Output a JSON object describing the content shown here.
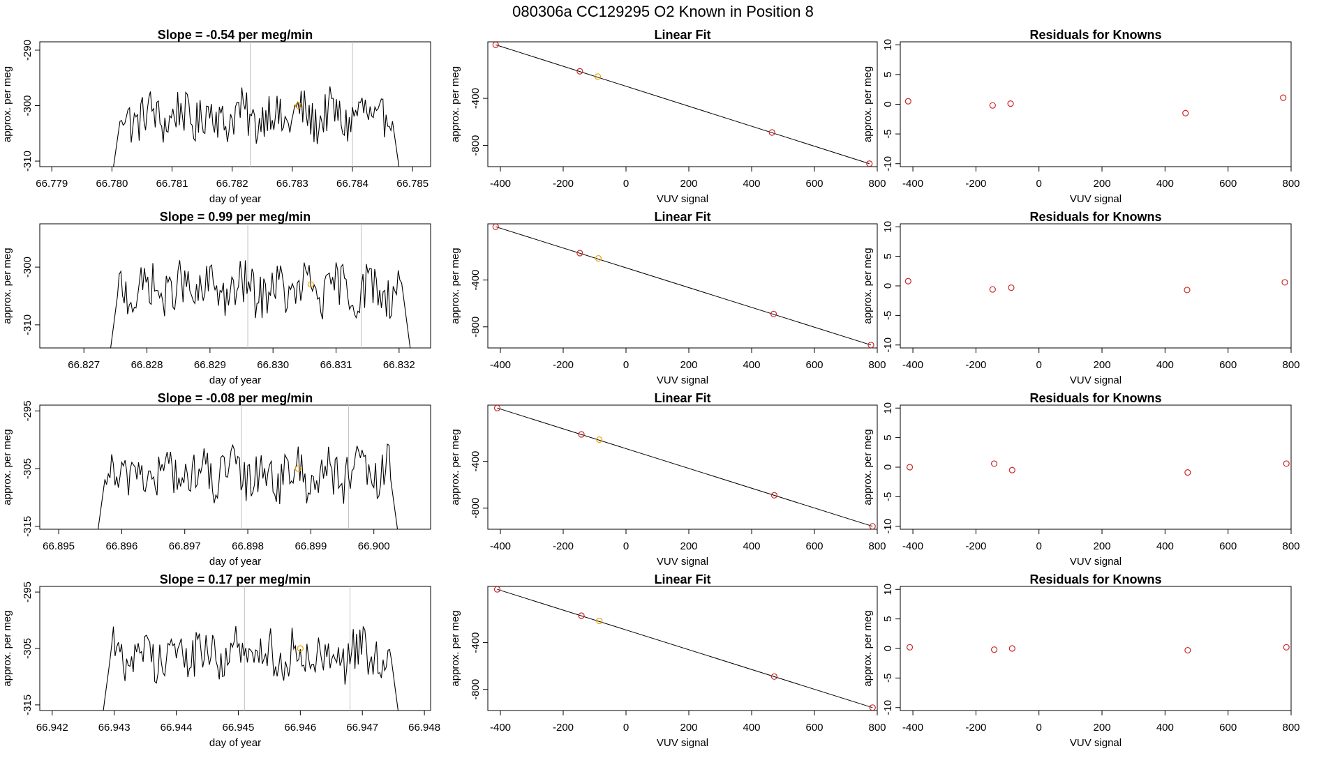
{
  "header": {
    "title": "080306a      CC129295    O2 Known in Position  8"
  },
  "colors": {
    "trace": "#000000",
    "marker_red": "#cd2626",
    "marker_orange": "#e8a000",
    "guide_line": "#bfbfbf"
  },
  "chart_data": [
    {
      "type": "line",
      "title": "Slope =  -0.54  per meg/min",
      "xlabel": "day of year",
      "ylabel": "approx. per meg",
      "xlim": [
        66.7788,
        66.7853
      ],
      "ylim": [
        -311,
        -288.5
      ],
      "xticks": [
        "66.779",
        "66.780",
        "66.781",
        "66.782",
        "66.783",
        "66.784",
        "66.785"
      ],
      "yticks": [
        "-290",
        "-300",
        "-310"
      ],
      "trace_start": 66.78,
      "trace_end": 66.7848,
      "baseline": -302,
      "vlines": [
        66.7823,
        66.784
      ],
      "highlight_point": {
        "x": 66.7831,
        "y": -300
      }
    },
    {
      "type": "scatter",
      "title": "Linear Fit",
      "xlabel": "VUV signal",
      "ylabel": "approx. per meg",
      "xlim": [
        -440,
        800
      ],
      "ylim": [
        -980,
        80
      ],
      "xticks": [
        "-400",
        "-200",
        "0",
        "200",
        "400",
        "600",
        "800"
      ],
      "yticks": [
        "-400",
        "-800"
      ],
      "points": [
        {
          "x": -415,
          "y": 55,
          "color": "red"
        },
        {
          "x": -147,
          "y": -170,
          "color": "red"
        },
        {
          "x": -90,
          "y": -215,
          "color": "orange"
        },
        {
          "x": 465,
          "y": -690,
          "color": "red"
        },
        {
          "x": 775,
          "y": -955,
          "color": "red"
        }
      ],
      "fit_line": [
        [
          -415,
          55
        ],
        [
          775,
          -955
        ]
      ]
    },
    {
      "type": "scatter",
      "title": "Residuals for Knowns",
      "xlabel": "VUV signal",
      "ylabel": "approx. per meg",
      "xlim": [
        -440,
        800
      ],
      "ylim": [
        -10.5,
        10.5
      ],
      "xticks": [
        "-400",
        "-200",
        "0",
        "200",
        "400",
        "600",
        "800"
      ],
      "yticks": [
        "10",
        "5",
        "0",
        "-5",
        "-10"
      ],
      "points": [
        {
          "x": -415,
          "y": 0.5,
          "color": "red"
        },
        {
          "x": -147,
          "y": -0.2,
          "color": "red"
        },
        {
          "x": -90,
          "y": 0.1,
          "color": "red"
        },
        {
          "x": 465,
          "y": -1.5,
          "color": "red"
        },
        {
          "x": 775,
          "y": 1.1,
          "color": "red"
        }
      ]
    },
    {
      "type": "line",
      "title": "Slope =  0.99  per meg/min",
      "xlabel": "day of year",
      "ylabel": "approx. per meg",
      "xlim": [
        66.8263,
        66.8325
      ],
      "ylim": [
        -314,
        -292.5
      ],
      "xticks": [
        "66.827",
        "66.828",
        "66.829",
        "66.830",
        "66.831",
        "66.832"
      ],
      "yticks": [
        "-300",
        "-310"
      ],
      "trace_start": 66.8274,
      "trace_end": 66.8322,
      "baseline": -304,
      "vlines": [
        66.8296,
        66.8314
      ],
      "highlight_point": {
        "x": 66.8306,
        "y": -303
      }
    },
    {
      "type": "scatter",
      "title": "Linear Fit",
      "xlabel": "VUV signal",
      "ylabel": "approx. per meg",
      "xlim": [
        -440,
        800
      ],
      "ylim": [
        -980,
        80
      ],
      "xticks": [
        "-400",
        "-200",
        "0",
        "200",
        "400",
        "600",
        "800"
      ],
      "yticks": [
        "-400",
        "-800"
      ],
      "points": [
        {
          "x": -415,
          "y": 55,
          "color": "red"
        },
        {
          "x": -147,
          "y": -170,
          "color": "red"
        },
        {
          "x": -88,
          "y": -215,
          "color": "orange"
        },
        {
          "x": 470,
          "y": -690,
          "color": "red"
        },
        {
          "x": 780,
          "y": -955,
          "color": "red"
        }
      ],
      "fit_line": [
        [
          -415,
          55
        ],
        [
          780,
          -955
        ]
      ]
    },
    {
      "type": "scatter",
      "title": "Residuals for Knowns",
      "xlabel": "VUV signal",
      "ylabel": "approx. per meg",
      "xlim": [
        -440,
        800
      ],
      "ylim": [
        -10.5,
        10.5
      ],
      "xticks": [
        "-400",
        "-200",
        "0",
        "200",
        "400",
        "600",
        "800"
      ],
      "yticks": [
        "10",
        "5",
        "0",
        "-5",
        "-10"
      ],
      "points": [
        {
          "x": -415,
          "y": 0.8,
          "color": "red"
        },
        {
          "x": -147,
          "y": -0.6,
          "color": "red"
        },
        {
          "x": -88,
          "y": -0.3,
          "color": "red"
        },
        {
          "x": 470,
          "y": -0.7,
          "color": "red"
        },
        {
          "x": 780,
          "y": 0.6,
          "color": "red"
        }
      ]
    },
    {
      "type": "line",
      "title": "Slope =  -0.08  per meg/min",
      "xlabel": "day of year",
      "ylabel": "approx. per meg",
      "xlim": [
        66.8947,
        66.9009
      ],
      "ylim": [
        -315.5,
        -294
      ],
      "xticks": [
        "66.895",
        "66.896",
        "66.897",
        "66.898",
        "66.899",
        "66.900"
      ],
      "yticks": [
        "-295",
        "-305",
        "-315"
      ],
      "trace_start": 66.8956,
      "trace_end": 66.9004,
      "baseline": -306,
      "vlines": [
        66.8979,
        66.8996
      ],
      "highlight_point": {
        "x": 66.8988,
        "y": -305
      }
    },
    {
      "type": "scatter",
      "title": "Linear Fit",
      "xlabel": "VUV signal",
      "ylabel": "approx. per meg",
      "xlim": [
        -440,
        800
      ],
      "ylim": [
        -980,
        80
      ],
      "xticks": [
        "-400",
        "-200",
        "0",
        "200",
        "400",
        "600",
        "800"
      ],
      "yticks": [
        "-400",
        "-800"
      ],
      "points": [
        {
          "x": -410,
          "y": 55,
          "color": "red"
        },
        {
          "x": -142,
          "y": -170,
          "color": "red"
        },
        {
          "x": -85,
          "y": -215,
          "color": "orange"
        },
        {
          "x": 472,
          "y": -690,
          "color": "red"
        },
        {
          "x": 785,
          "y": -955,
          "color": "red"
        }
      ],
      "fit_line": [
        [
          -410,
          55
        ],
        [
          785,
          -955
        ]
      ]
    },
    {
      "type": "scatter",
      "title": "Residuals for Knowns",
      "xlabel": "VUV signal",
      "ylabel": "approx. per meg",
      "xlim": [
        -440,
        800
      ],
      "ylim": [
        -10.5,
        10.5
      ],
      "xticks": [
        "-400",
        "-200",
        "0",
        "200",
        "400",
        "600",
        "800"
      ],
      "yticks": [
        "10",
        "5",
        "0",
        "-5",
        "-10"
      ],
      "points": [
        {
          "x": -410,
          "y": 0.0,
          "color": "red"
        },
        {
          "x": -142,
          "y": 0.6,
          "color": "red"
        },
        {
          "x": -85,
          "y": -0.5,
          "color": "red"
        },
        {
          "x": 472,
          "y": -0.9,
          "color": "red"
        },
        {
          "x": 785,
          "y": 0.6,
          "color": "red"
        }
      ]
    },
    {
      "type": "line",
      "title": "Slope =  0.17  per meg/min",
      "xlabel": "day of year",
      "ylabel": "approx. per meg",
      "xlim": [
        66.9418,
        66.9481
      ],
      "ylim": [
        -316,
        -294
      ],
      "xticks": [
        "66.942",
        "66.943",
        "66.944",
        "66.945",
        "66.946",
        "66.947",
        "66.948"
      ],
      "yticks": [
        "-295",
        "-305",
        "-315"
      ],
      "trace_start": 66.9428,
      "trace_end": 66.9476,
      "baseline": -306,
      "vlines": [
        66.9451,
        66.9468
      ],
      "highlight_point": {
        "x": 66.946,
        "y": -305
      }
    },
    {
      "type": "scatter",
      "title": "Linear Fit",
      "xlabel": "VUV signal",
      "ylabel": "approx. per meg",
      "xlim": [
        -440,
        800
      ],
      "ylim": [
        -980,
        80
      ],
      "xticks": [
        "-400",
        "-200",
        "0",
        "200",
        "400",
        "600",
        "800"
      ],
      "yticks": [
        "-400",
        "-800"
      ],
      "points": [
        {
          "x": -410,
          "y": 55,
          "color": "red"
        },
        {
          "x": -142,
          "y": -170,
          "color": "red"
        },
        {
          "x": -85,
          "y": -215,
          "color": "orange"
        },
        {
          "x": 472,
          "y": -690,
          "color": "red"
        },
        {
          "x": 785,
          "y": -955,
          "color": "red"
        }
      ],
      "fit_line": [
        [
          -410,
          55
        ],
        [
          785,
          -955
        ]
      ]
    },
    {
      "type": "scatter",
      "title": "Residuals for Knowns",
      "xlabel": "VUV signal",
      "ylabel": "approx. per meg",
      "xlim": [
        -440,
        800
      ],
      "ylim": [
        -10.5,
        10.5
      ],
      "xticks": [
        "-400",
        "-200",
        "0",
        "200",
        "400",
        "600",
        "800"
      ],
      "yticks": [
        "10",
        "5",
        "0",
        "-5",
        "-10"
      ],
      "points": [
        {
          "x": -410,
          "y": 0.2,
          "color": "red"
        },
        {
          "x": -142,
          "y": -0.2,
          "color": "red"
        },
        {
          "x": -85,
          "y": 0.0,
          "color": "red"
        },
        {
          "x": 472,
          "y": -0.3,
          "color": "red"
        },
        {
          "x": 785,
          "y": 0.2,
          "color": "red"
        }
      ]
    }
  ]
}
